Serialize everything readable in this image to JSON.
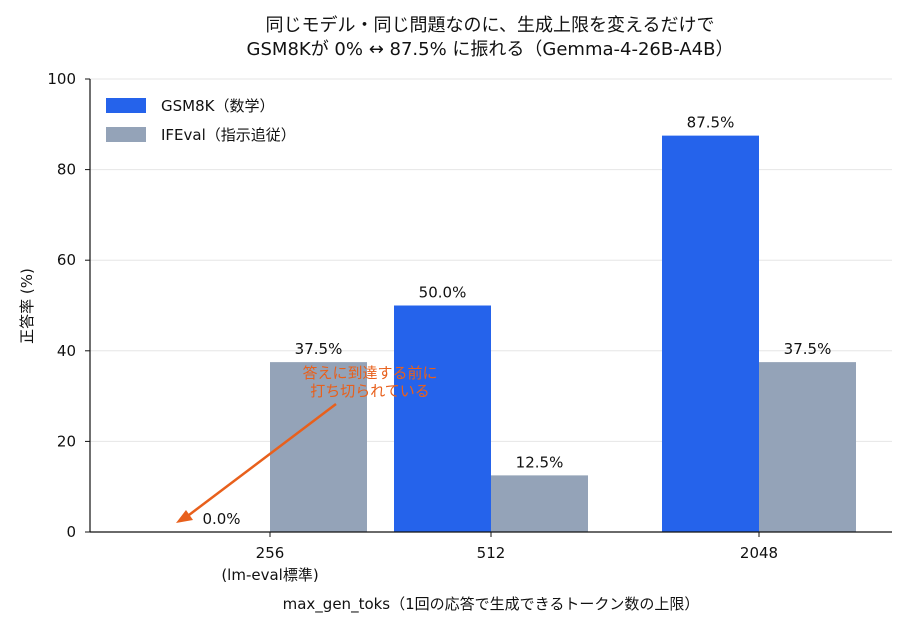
{
  "chart_data": {
    "type": "bar",
    "title": "同じモデル・同じ問題なのに、生成上限を変えるだけで",
    "subtitle": "GSM8Kが 0% ↔ 87.5% に振れる（Gemma-4-26B-A4B）",
    "xlabel": "max_gen_toks（1回の応答で生成できるトークン数の上限）",
    "ylabel": "正答率 (%)",
    "ylim": [
      0,
      100
    ],
    "yticks": [
      "0",
      "20",
      "40",
      "60",
      "80",
      "100"
    ],
    "categories": [
      "256",
      "512",
      "2048"
    ],
    "category_sublabels": [
      "(lm-eval標準)",
      "",
      ""
    ],
    "series": [
      {
        "name": "GSM8K（数学）",
        "values": [
          0.0,
          50.0,
          87.5
        ],
        "labels": [
          "0.0%",
          "50.0%",
          "87.5%"
        ],
        "color": "#2563eb"
      },
      {
        "name": "IFEval（指示追従）",
        "values": [
          37.5,
          12.5,
          37.5
        ],
        "labels": [
          "37.5%",
          "12.5%",
          "37.5%"
        ],
        "color": "#94a3b8"
      }
    ],
    "grid": true,
    "legend": "top-left",
    "annotation": {
      "lines": [
        "答えに到達する前に",
        "打ち切られている"
      ],
      "color": "#e8601c",
      "target": {
        "category": "256",
        "series": "GSM8K（数学）",
        "value": 0.0
      }
    }
  }
}
